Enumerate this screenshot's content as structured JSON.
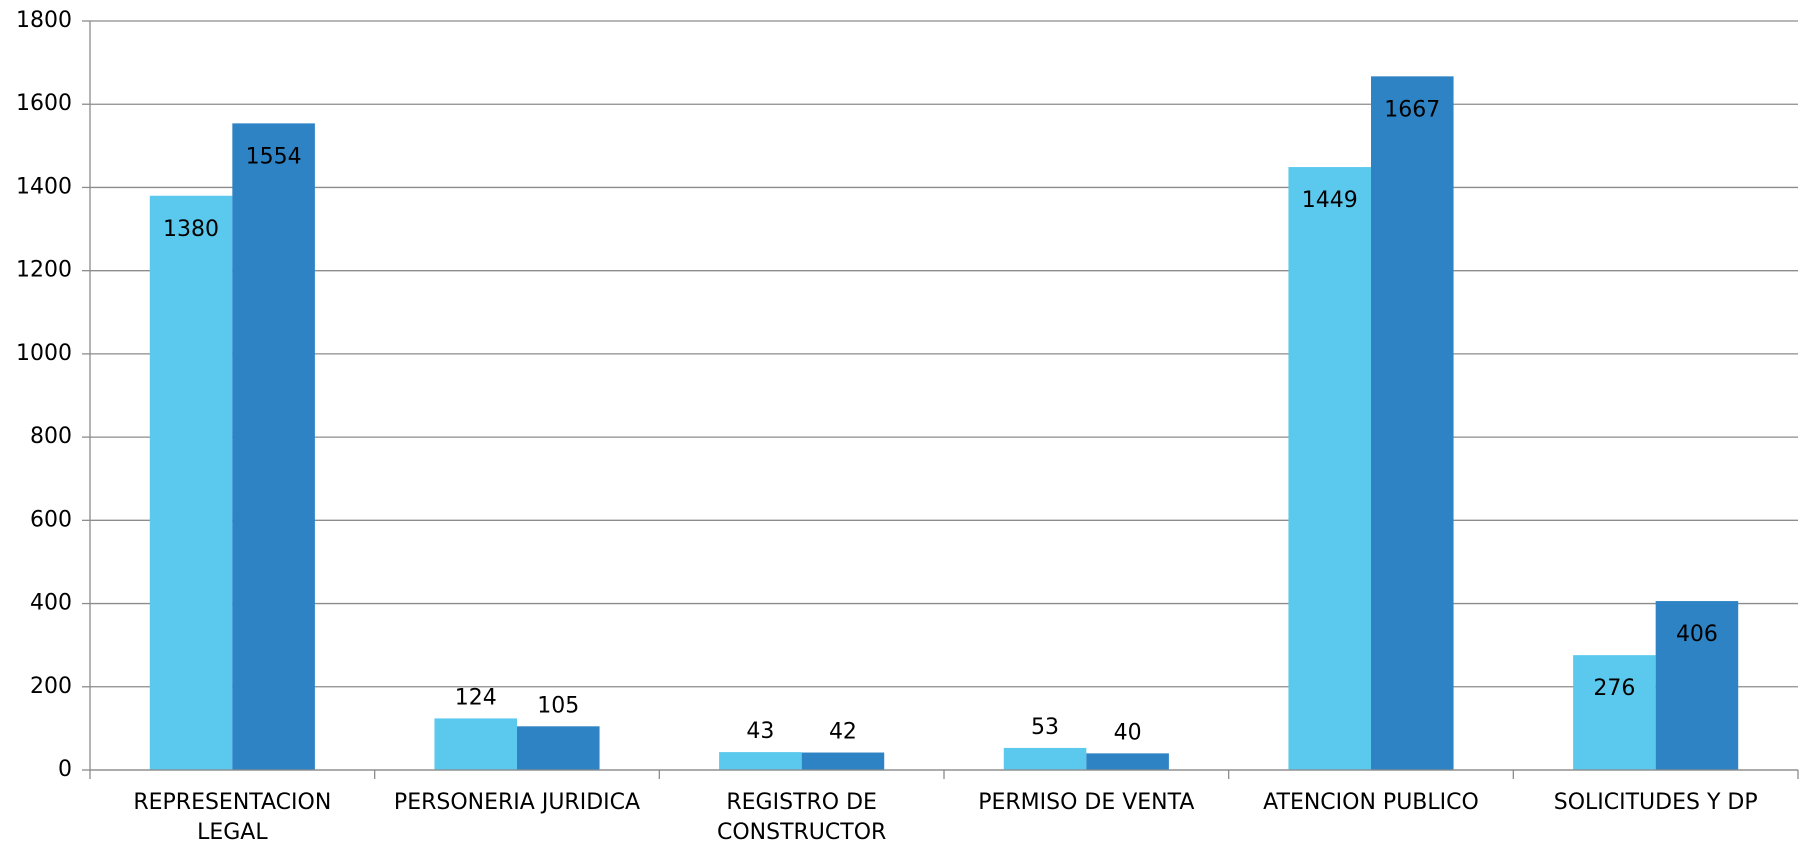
{
  "chart_data": {
    "type": "bar",
    "categories": [
      "REPRESENTACION LEGAL",
      "PERSONERIA JURIDICA",
      "REGISTRO DE CONSTRUCTOR",
      "PERMISO DE VENTA",
      "ATENCION PUBLICO",
      "SOLICITUDES Y DP"
    ],
    "series": [
      {
        "color": "#5bc9ed",
        "values": [
          1380,
          124,
          43,
          53,
          1449,
          276
        ]
      },
      {
        "color": "#2e83c4",
        "values": [
          1554,
          105,
          42,
          40,
          1667,
          406
        ]
      }
    ],
    "ylim": [
      0,
      1800
    ],
    "yticks": [
      0,
      200,
      400,
      600,
      800,
      1000,
      1200,
      1400,
      1600,
      1800
    ],
    "grid": true
  }
}
